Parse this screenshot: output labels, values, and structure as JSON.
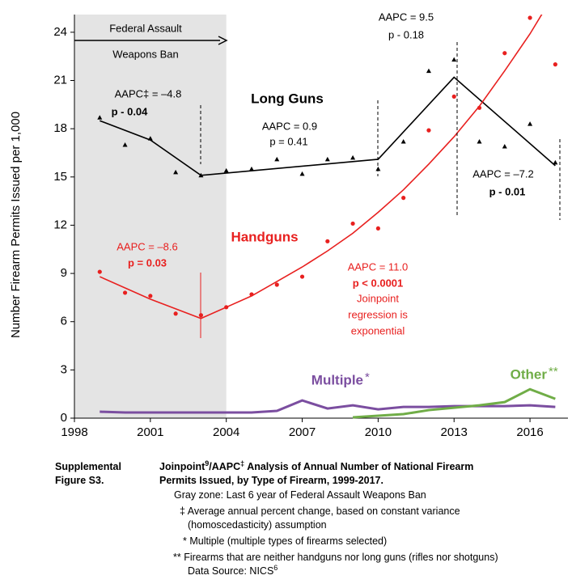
{
  "chart_data": {
    "type": "line",
    "y_label": "Number Firearm Permits Issued per 1,000",
    "xlim": [
      1998,
      2017.5
    ],
    "ylim": [
      0,
      25.1
    ],
    "xticks": [
      1998,
      2001,
      2004,
      2007,
      2010,
      2013,
      2016
    ],
    "yticks": [
      0,
      3,
      6,
      9,
      12,
      15,
      18,
      21,
      24
    ],
    "shade_x": [
      1998,
      2004
    ],
    "shade_color": "#e4e4e4",
    "series": [
      {
        "name": "Long Guns",
        "color": "#000000",
        "marker": "triangle",
        "x": [
          1999,
          2000,
          2001,
          2002,
          2003,
          2004,
          2005,
          2006,
          2007,
          2008,
          2009,
          2010,
          2011,
          2012,
          2013,
          2014,
          2015,
          2016,
          2017
        ],
        "values": [
          18.7,
          17.0,
          17.4,
          15.3,
          15.1,
          15.4,
          15.5,
          16.1,
          15.2,
          16.1,
          16.2,
          15.5,
          17.2,
          21.6,
          22.3,
          17.2,
          16.9,
          18.3,
          15.9
        ]
      },
      {
        "color": "#000000",
        "marker": "none",
        "x": [
          1999,
          2001,
          2003,
          2010,
          2013,
          2017
        ],
        "values": [
          18.5,
          17.3,
          15.1,
          16.1,
          21.2,
          15.7
        ]
      },
      {
        "name": "Handguns",
        "color": "#e8201f",
        "marker": "circle",
        "x": [
          1999,
          2000,
          2001,
          2002,
          2003,
          2004,
          2005,
          2006,
          2007,
          2008,
          2009,
          2010,
          2011,
          2012,
          2013,
          2014,
          2015,
          2016,
          2017
        ],
        "values": [
          9.1,
          7.8,
          7.6,
          6.5,
          6.4,
          6.9,
          7.7,
          8.3,
          8.8,
          11.0,
          12.1,
          11.8,
          13.7,
          17.9,
          20.0,
          19.3,
          22.7,
          24.9,
          22.0
        ]
      },
      {
        "color": "#e8201f",
        "marker": "none",
        "x": [
          1999,
          2001,
          2003,
          2004,
          2005,
          2006,
          2007,
          2008,
          2009,
          2010,
          2011,
          2012,
          2013,
          2014,
          2015,
          2016,
          2017
        ],
        "values": [
          8.8,
          7.4,
          6.2,
          6.9,
          7.6,
          8.5,
          9.4,
          10.4,
          11.5,
          12.8,
          14.2,
          15.8,
          17.5,
          19.4,
          21.6,
          23.9,
          26.5
        ]
      },
      {
        "name": "Multiple",
        "color": "#7b4ea0",
        "marker": "none",
        "x": [
          1999,
          2000,
          2001,
          2002,
          2003,
          2004,
          2005,
          2006,
          2007,
          2008,
          2009,
          2010,
          2011,
          2012,
          2013,
          2014,
          2015,
          2016,
          2017
        ],
        "values": [
          0.4,
          0.35,
          0.35,
          0.35,
          0.35,
          0.35,
          0.35,
          0.45,
          1.1,
          0.6,
          0.8,
          0.55,
          0.7,
          0.7,
          0.75,
          0.75,
          0.75,
          0.8,
          0.7
        ]
      },
      {
        "name": "Other",
        "color": "#70ad47",
        "marker": "none",
        "x": [
          2009,
          2010,
          2011,
          2012,
          2013,
          2014,
          2015,
          2016,
          2017
        ],
        "values": [
          0.05,
          0.15,
          0.25,
          0.5,
          0.65,
          0.8,
          1.0,
          1.8,
          1.2
        ]
      }
    ],
    "annotations": [
      "Federal Assault",
      "Weapons Ban",
      "AAPC‡ = –4.8",
      "p - 0.04",
      "AAPC =  0.9",
      "p = 0.41",
      "AAPC =  9.5",
      "p - 0.18",
      "AAPC = –7.2",
      "p - 0.01",
      "AAPC = –8.6",
      "p = 0.03",
      "AAPC = 11.0",
      "p < 0.0001",
      "Joinpoint",
      "regression is",
      "exponential",
      "*",
      "**"
    ]
  },
  "caption": {
    "label": [
      "Supplemental",
      "Figure S3."
    ],
    "title": [
      "Joinpoint",
      "9",
      "/AAPC",
      "‡",
      " Analysis of Annual Number of National Firearm",
      "Permits Issued, by Type of Firearm, 1999-2017."
    ],
    "notes": [
      "Gray zone:  Last 6 year of Federal Assault Weapons Ban",
      "‡ Average annual percent change, based on constant variance",
      "(homoscedasticity) assumption",
      "* Multiple (multiple types of firearms selected)",
      "** Firearms that are neither handguns nor long guns (rifles nor shotguns)"
    ],
    "source": [
      "Data Source: NICS",
      "6"
    ]
  }
}
